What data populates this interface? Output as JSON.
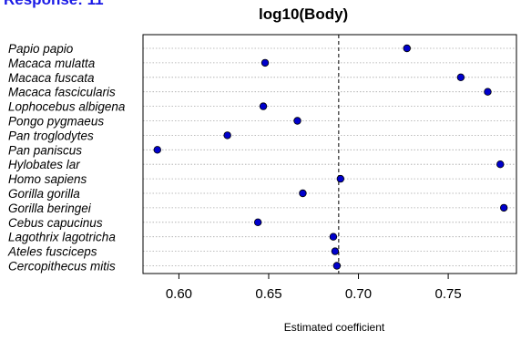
{
  "header": {
    "response_label": "Response: 11",
    "title": "log10(Body)"
  },
  "colors": {
    "point_fill": "#0000cc",
    "point_stroke": "#000000",
    "response_label": "#1a1ae6",
    "grid": "#a8a8a8"
  },
  "chart_data": {
    "type": "scatter",
    "title": "log10(Body)",
    "xlabel": "Estimated coefficient",
    "ylabel": "",
    "xlim": [
      0.58,
      0.788
    ],
    "xticks": [
      0.6,
      0.65,
      0.7,
      0.75
    ],
    "xtick_labels": [
      "0.60",
      "0.65",
      "0.70",
      "0.75"
    ],
    "reference_line": 0.689,
    "grid": "horizontal dotted",
    "categories": [
      "Papio papio",
      "Macaca mulatta",
      "Macaca fuscata",
      "Macaca fascicularis",
      "Lophocebus albigena",
      "Pongo pygmaeus",
      "Pan troglodytes",
      "Pan paniscus",
      "Hylobates lar",
      "Homo sapiens",
      "Gorilla gorilla",
      "Gorilla beringei",
      "Cebus capucinus",
      "Lagothrix lagotricha",
      "Ateles fusciceps",
      "Cercopithecus mitis"
    ],
    "values": [
      0.727,
      0.648,
      0.757,
      0.772,
      0.647,
      0.666,
      0.627,
      0.588,
      0.779,
      0.69,
      0.669,
      0.781,
      0.644,
      0.686,
      0.687,
      0.688
    ]
  }
}
